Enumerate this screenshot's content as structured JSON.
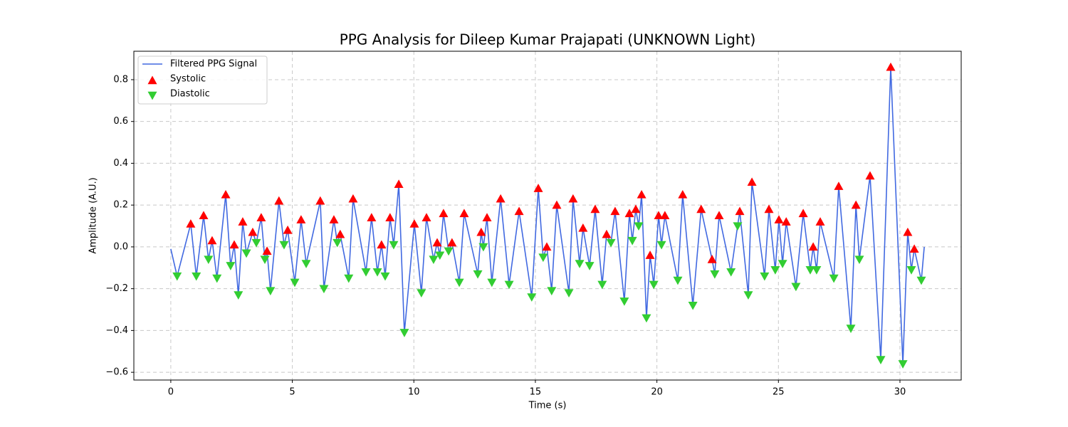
{
  "chart_data": {
    "type": "line",
    "title": "PPG Analysis for Dileep Kumar Prajapati (UNKNOWN Light)",
    "x_label": "Time (s)",
    "y_label": "Amplitude (A.U.)",
    "xlim": [
      -1.52,
      32.52
    ],
    "ylim": [
      -0.637,
      0.936
    ],
    "xticks": [
      0,
      5,
      10,
      15,
      20,
      25,
      30
    ],
    "yticks": [
      {
        "value": -0.6,
        "label": "−0.6"
      },
      {
        "value": -0.4,
        "label": "−0.4"
      },
      {
        "value": -0.2,
        "label": "−0.2"
      },
      {
        "value": 0,
        "label": "0.0"
      },
      0.2,
      0.4,
      0.6,
      0.8
    ],
    "grid": true,
    "legend": "upper left",
    "series": [
      {
        "name": "Filtered PPG Signal",
        "style": "line",
        "color": "#4169e1",
        "x": [
          0,
          0.26,
          0.82,
          1.05,
          1.35,
          1.55,
          1.7,
          1.9,
          2.26,
          2.46,
          2.61,
          2.78,
          2.96,
          3.11,
          3.37,
          3.52,
          3.72,
          3.87,
          3.96,
          4.1,
          4.45,
          4.66,
          4.81,
          5.1,
          5.36,
          5.57,
          6.15,
          6.3,
          6.71,
          6.85,
          6.97,
          7.32,
          7.5,
          8.03,
          8.26,
          8.5,
          8.67,
          8.82,
          9.02,
          9.17,
          9.38,
          9.61,
          10.02,
          10.31,
          10.52,
          10.81,
          10.96,
          11.07,
          11.22,
          11.43,
          11.57,
          11.87,
          12.07,
          12.63,
          12.77,
          12.86,
          13.01,
          13.21,
          13.57,
          13.92,
          14.33,
          14.85,
          15.12,
          15.32,
          15.47,
          15.67,
          15.88,
          16.38,
          16.55,
          16.82,
          16.96,
          17.23,
          17.46,
          17.75,
          17.93,
          18.11,
          18.28,
          18.66,
          18.87,
          18.99,
          19.13,
          19.25,
          19.37,
          19.57,
          19.72,
          19.87,
          20.07,
          20.19,
          20.33,
          20.86,
          21.06,
          21.48,
          21.82,
          22.27,
          22.38,
          22.56,
          23.05,
          23.32,
          23.41,
          23.76,
          23.91,
          24.43,
          24.61,
          24.87,
          25.02,
          25.17,
          25.32,
          25.72,
          26.02,
          26.31,
          26.43,
          26.57,
          26.72,
          27.28,
          27.48,
          27.98,
          28.19,
          28.33,
          28.77,
          29.21,
          29.62,
          30.12,
          30.32,
          30.47,
          30.59,
          30.88,
          31.0
        ],
        "values": [
          -0.01,
          -0.14,
          0.11,
          -0.14,
          0.15,
          -0.06,
          0.03,
          -0.15,
          0.25,
          -0.09,
          0.01,
          -0.23,
          0.12,
          -0.03,
          0.07,
          0.02,
          0.14,
          -0.06,
          -0.02,
          -0.21,
          0.22,
          0.01,
          0.08,
          -0.17,
          0.13,
          -0.08,
          0.22,
          -0.2,
          0.13,
          0.02,
          0.06,
          -0.15,
          0.23,
          -0.12,
          0.14,
          -0.12,
          0.01,
          -0.14,
          0.14,
          0.01,
          0.3,
          -0.41,
          0.11,
          -0.22,
          0.14,
          -0.06,
          0.02,
          -0.04,
          0.16,
          -0.02,
          0.02,
          -0.17,
          0.16,
          -0.13,
          0.07,
          0.0,
          0.14,
          -0.17,
          0.23,
          -0.18,
          0.17,
          -0.24,
          0.28,
          -0.05,
          0.0,
          -0.21,
          0.2,
          -0.22,
          0.23,
          -0.08,
          0.09,
          -0.09,
          0.18,
          -0.18,
          0.06,
          0.02,
          0.17,
          -0.26,
          0.16,
          0.03,
          0.18,
          0.1,
          0.25,
          -0.34,
          -0.04,
          -0.18,
          0.15,
          0.01,
          0.15,
          -0.16,
          0.25,
          -0.28,
          0.18,
          -0.06,
          -0.13,
          0.15,
          -0.12,
          0.1,
          0.17,
          -0.23,
          0.31,
          -0.14,
          0.18,
          -0.11,
          0.13,
          -0.08,
          0.12,
          -0.19,
          0.16,
          -0.11,
          0.0,
          -0.11,
          0.12,
          -0.15,
          0.29,
          -0.39,
          0.2,
          -0.06,
          0.34,
          -0.54,
          0.86,
          -0.56,
          0.07,
          -0.11,
          -0.01,
          -0.16,
          0.0
        ]
      },
      {
        "name": "Systolic",
        "style": "triangle-up",
        "color": "#ff0000",
        "x": [
          0.82,
          1.35,
          1.7,
          2.26,
          2.61,
          2.96,
          3.37,
          3.72,
          3.96,
          4.45,
          4.81,
          5.36,
          6.15,
          6.71,
          6.97,
          7.5,
          8.26,
          8.67,
          9.02,
          9.38,
          10.02,
          10.52,
          10.96,
          11.22,
          11.57,
          12.07,
          12.77,
          13.01,
          13.57,
          14.33,
          15.12,
          15.47,
          15.88,
          16.55,
          16.96,
          17.46,
          17.93,
          18.28,
          18.87,
          19.13,
          19.37,
          19.72,
          20.07,
          20.33,
          21.06,
          21.82,
          22.27,
          22.56,
          23.41,
          23.91,
          24.61,
          25.02,
          25.32,
          26.02,
          26.43,
          26.72,
          27.48,
          28.19,
          28.77,
          29.62,
          30.32,
          30.59
        ],
        "values": [
          0.11,
          0.15,
          0.03,
          0.25,
          0.01,
          0.12,
          0.07,
          0.14,
          -0.02,
          0.22,
          0.08,
          0.13,
          0.22,
          0.13,
          0.06,
          0.23,
          0.14,
          0.01,
          0.14,
          0.3,
          0.11,
          0.14,
          0.02,
          0.16,
          0.02,
          0.16,
          0.07,
          0.14,
          0.23,
          0.17,
          0.28,
          0.0,
          0.2,
          0.23,
          0.09,
          0.18,
          0.06,
          0.17,
          0.16,
          0.18,
          0.25,
          -0.04,
          0.15,
          0.15,
          0.25,
          0.18,
          -0.06,
          0.15,
          0.17,
          0.31,
          0.18,
          0.13,
          0.12,
          0.16,
          0.0,
          0.12,
          0.29,
          0.2,
          0.34,
          0.86,
          0.07,
          -0.01
        ]
      },
      {
        "name": "Diastolic",
        "style": "triangle-down",
        "color": "#32cd32",
        "x": [
          0.26,
          1.05,
          1.55,
          1.9,
          2.46,
          2.78,
          3.11,
          3.52,
          3.87,
          4.1,
          4.66,
          5.1,
          5.57,
          6.3,
          6.85,
          7.32,
          8.03,
          8.5,
          8.82,
          9.17,
          9.61,
          10.31,
          10.81,
          11.07,
          11.43,
          11.87,
          12.63,
          12.86,
          13.21,
          13.92,
          14.85,
          15.32,
          15.67,
          16.38,
          16.82,
          17.23,
          17.75,
          18.11,
          18.66,
          18.99,
          19.25,
          19.57,
          19.87,
          20.19,
          20.86,
          21.48,
          22.38,
          23.05,
          23.32,
          23.76,
          24.43,
          24.87,
          25.17,
          25.72,
          26.31,
          26.57,
          27.28,
          27.98,
          28.33,
          29.21,
          30.12,
          30.47,
          30.88
        ],
        "values": [
          -0.14,
          -0.14,
          -0.06,
          -0.15,
          -0.09,
          -0.23,
          -0.03,
          0.02,
          -0.06,
          -0.21,
          0.01,
          -0.17,
          -0.08,
          -0.2,
          0.02,
          -0.15,
          -0.12,
          -0.12,
          -0.14,
          0.01,
          -0.41,
          -0.22,
          -0.06,
          -0.04,
          -0.02,
          -0.17,
          -0.13,
          0.0,
          -0.17,
          -0.18,
          -0.24,
          -0.05,
          -0.21,
          -0.22,
          -0.08,
          -0.09,
          -0.18,
          0.02,
          -0.26,
          0.03,
          0.1,
          -0.34,
          -0.18,
          0.01,
          -0.16,
          -0.28,
          -0.13,
          -0.12,
          0.1,
          -0.23,
          -0.14,
          -0.11,
          -0.08,
          -0.19,
          -0.11,
          -0.11,
          -0.15,
          -0.39,
          -0.06,
          -0.54,
          -0.56,
          -0.11,
          -0.16
        ]
      }
    ]
  }
}
